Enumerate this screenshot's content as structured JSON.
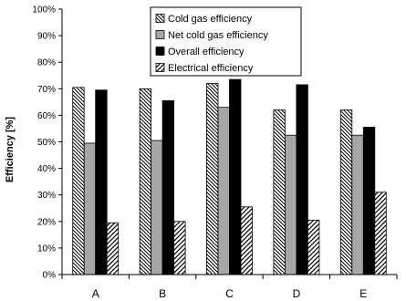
{
  "chart_data": {
    "type": "bar",
    "title": "",
    "xlabel": "",
    "ylabel": "Efficiency [%]",
    "ylim": [
      0,
      100
    ],
    "yticks": [
      "0%",
      "10%",
      "20%",
      "30%",
      "40%",
      "50%",
      "60%",
      "70%",
      "80%",
      "90%",
      "100%"
    ],
    "categories": [
      "A",
      "B",
      "C",
      "D",
      "E"
    ],
    "series": [
      {
        "name": "Cold gas efficiency",
        "values": [
          70.5,
          70,
          72,
          62,
          62
        ],
        "color": "#ffffff",
        "pattern": "back-diagonal-dense"
      },
      {
        "name": "Net cold gas efficiency",
        "values": [
          49.5,
          50.5,
          63,
          52.5,
          52.5
        ],
        "color": "#a6a6a6",
        "pattern": "solid"
      },
      {
        "name": "Overall efficiency",
        "values": [
          69.5,
          65.5,
          73.5,
          71.5,
          55.5
        ],
        "color": "#000000",
        "pattern": "solid"
      },
      {
        "name": "Electrical efficiency",
        "values": [
          19.5,
          20,
          25.5,
          20.5,
          31
        ],
        "color": "#ffffff",
        "pattern": "diagonal-wide"
      }
    ],
    "grid": false,
    "legend": "top-center, boxed"
  }
}
